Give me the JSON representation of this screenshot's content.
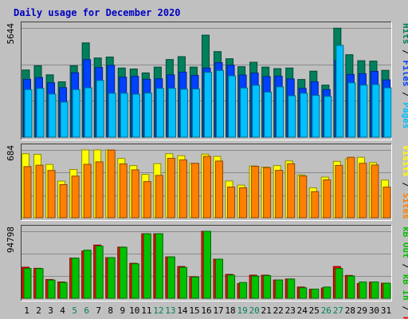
{
  "title": "Daily usage for December 2020",
  "colors": {
    "background": "#c0c0c0",
    "title": "#0000c0",
    "hits": "#00805c",
    "files": "#0040ff",
    "pages": "#00c0ff",
    "visits": "#ffff00",
    "sites": "#ff8000",
    "kb_in": "#00c000",
    "kb_out": "#ff0000",
    "weekend_label": "#00805c"
  },
  "chart_data": [
    {
      "type": "bar",
      "panel": "hits",
      "max_label": "5644",
      "ylim": [
        0,
        5644
      ],
      "categories": [
        "1",
        "2",
        "3",
        "4",
        "5",
        "6",
        "7",
        "8",
        "9",
        "10",
        "11",
        "12",
        "13",
        "14",
        "15",
        "16",
        "17",
        "18",
        "19",
        "20",
        "21",
        "22",
        "23",
        "24",
        "25",
        "26",
        "27",
        "28",
        "29",
        "30",
        "31"
      ],
      "legend": [
        "Pages",
        "Files",
        "Hits"
      ],
      "series": [
        {
          "name": "Hits",
          "values": [
            3470,
            3690,
            3220,
            2860,
            3690,
            4870,
            4090,
            4140,
            3570,
            3520,
            3320,
            3620,
            4010,
            4160,
            3620,
            5270,
            4420,
            4050,
            3640,
            3870,
            3620,
            3540,
            3570,
            2980,
            3410,
            2690,
            5630,
            4260,
            3950,
            3930,
            3450
          ]
        },
        {
          "name": "Files",
          "values": [
            2990,
            3080,
            2810,
            2560,
            3330,
            4010,
            3600,
            3710,
            3100,
            3140,
            2990,
            3020,
            3220,
            3360,
            3190,
            3570,
            3850,
            3720,
            3210,
            3310,
            3130,
            3150,
            3010,
            2520,
            2860,
            2460,
            3970,
            3240,
            3280,
            3400,
            2960
          ]
        },
        {
          "name": "Pages",
          "values": [
            2460,
            2520,
            2230,
            1810,
            2460,
            2550,
            2930,
            2270,
            2270,
            2220,
            2280,
            2520,
            2520,
            2480,
            2490,
            3350,
            3450,
            3170,
            2540,
            2680,
            2330,
            2600,
            2140,
            2270,
            2160,
            2110,
            4740,
            2810,
            2690,
            2720,
            2550
          ]
        }
      ]
    },
    {
      "type": "bar",
      "panel": "visits",
      "max_label": "684",
      "ylim": [
        0,
        684
      ],
      "categories": [
        "1",
        "2",
        "3",
        "4",
        "5",
        "6",
        "7",
        "8",
        "9",
        "10",
        "11",
        "12",
        "13",
        "14",
        "15",
        "16",
        "17",
        "18",
        "19",
        "20",
        "21",
        "22",
        "23",
        "24",
        "25",
        "26",
        "27",
        "28",
        "29",
        "30",
        "31"
      ],
      "legend": [
        "Sites",
        "Visits"
      ],
      "series": [
        {
          "name": "Visits",
          "values": [
            646,
            640,
            538,
            370,
            487,
            684,
            684,
            684,
            598,
            526,
            438,
            546,
            646,
            626,
            548,
            642,
            619,
            371,
            329,
            522,
            511,
            526,
            573,
            432,
            302,
            410,
            569,
            594,
            610,
            556,
            380
          ]
        },
        {
          "name": "Sites",
          "values": [
            516,
            530,
            477,
            334,
            420,
            539,
            564,
            682,
            543,
            483,
            365,
            427,
            600,
            584,
            549,
            620,
            572,
            310,
            302,
            519,
            506,
            478,
            545,
            421,
            263,
            382,
            528,
            610,
            549,
            532,
            309
          ]
        }
      ]
    },
    {
      "type": "bar",
      "panel": "kbytes",
      "max_label": "94798",
      "ylim": [
        0,
        94798
      ],
      "categories": [
        "1",
        "2",
        "3",
        "4",
        "5",
        "6",
        "7",
        "8",
        "9",
        "10",
        "11",
        "12",
        "13",
        "14",
        "15",
        "16",
        "17",
        "18",
        "19",
        "20",
        "21",
        "22",
        "23",
        "24",
        "25",
        "26",
        "27",
        "28",
        "29",
        "30",
        "31"
      ],
      "legend": [
        "kB F",
        "kB In",
        "kB Out"
      ],
      "series": [
        {
          "name": "kB Out",
          "values": [
            44000,
            42450,
            26550,
            23080,
            56800,
            66790,
            75330,
            57490,
            72440,
            49500,
            91310,
            91310,
            58550,
            44980,
            30400,
            94798,
            55320,
            33830,
            20850,
            32740,
            32740,
            25850,
            27240,
            15930,
            12850,
            14560,
            44980,
            32330,
            20920,
            22920,
            21380
          ]
        },
        {
          "name": "kB In",
          "values": [
            42270,
            42000,
            25700,
            22340,
            56780,
            68150,
            73860,
            57490,
            72220,
            48770,
            91310,
            91310,
            58550,
            43750,
            29980,
            94798,
            55320,
            32740,
            22340,
            31500,
            32100,
            25850,
            27240,
            14830,
            13010,
            15930,
            42270,
            31500,
            23080,
            23080,
            21380
          ]
        }
      ]
    }
  ],
  "weekend_days": [
    5,
    6,
    12,
    13,
    19,
    20,
    26,
    27
  ]
}
